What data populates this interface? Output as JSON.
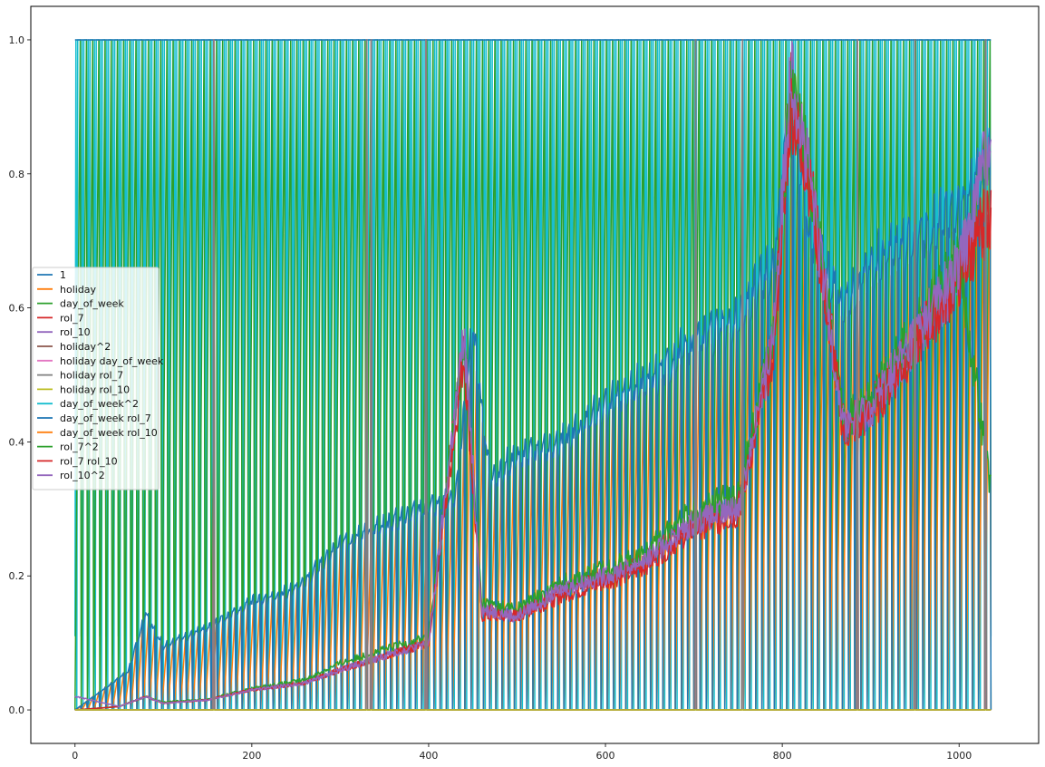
{
  "chart_data": {
    "type": "line",
    "title": "",
    "xlabel": "",
    "ylabel": "",
    "xlim": [
      -50,
      1090
    ],
    "ylim": [
      -0.05,
      1.05
    ],
    "xticks": [
      0,
      200,
      400,
      600,
      800,
      1000
    ],
    "yticks": [
      0.0,
      0.2,
      0.4,
      0.6,
      0.8,
      1.0
    ],
    "xtick_labels": [
      "0",
      "200",
      "400",
      "600",
      "800",
      "1000"
    ],
    "ytick_labels": [
      "0.0",
      "0.2",
      "0.4",
      "0.6",
      "0.8",
      "1.0"
    ],
    "grid": false,
    "legend_position": "center-left",
    "x_range": [
      0,
      1036
    ],
    "weekly_period": 7,
    "series": [
      {
        "name": "1",
        "color": "#1f77b4",
        "pattern": "constant",
        "value": 1.0
      },
      {
        "name": "holiday",
        "color": "#ff7f0e",
        "pattern": "spikes",
        "spikes_at": [
          157,
          330,
          335,
          397,
          702,
          755,
          885,
          950,
          1030
        ]
      },
      {
        "name": "day_of_week",
        "color": "#2ca02c",
        "pattern": "weekly",
        "values": [
          0,
          0.17,
          0.33,
          0.5,
          0.67,
          0.83,
          1.0
        ]
      },
      {
        "name": "rol_7",
        "color": "#d62728",
        "pattern": "level",
        "x": [
          0,
          50,
          80,
          100,
          150,
          200,
          260,
          300,
          350,
          400,
          440,
          460,
          500,
          550,
          600,
          640,
          700,
          750,
          790,
          810,
          830,
          870,
          900,
          950,
          1000,
          1036
        ],
        "y": [
          0.0,
          0.005,
          0.02,
          0.01,
          0.015,
          0.03,
          0.04,
          0.06,
          0.08,
          0.1,
          0.55,
          0.15,
          0.14,
          0.18,
          0.2,
          0.22,
          0.28,
          0.3,
          0.55,
          0.92,
          0.8,
          0.42,
          0.45,
          0.55,
          0.65,
          0.75
        ]
      },
      {
        "name": "rol_10",
        "color": "#9467bd",
        "pattern": "level",
        "x": [
          0,
          50,
          80,
          100,
          150,
          200,
          260,
          300,
          350,
          400,
          440,
          460,
          500,
          550,
          600,
          640,
          700,
          750,
          790,
          810,
          830,
          870,
          900,
          950,
          1000,
          1036
        ],
        "y": [
          0.0,
          0.005,
          0.02,
          0.01,
          0.015,
          0.03,
          0.04,
          0.06,
          0.08,
          0.1,
          0.55,
          0.15,
          0.14,
          0.18,
          0.2,
          0.22,
          0.28,
          0.3,
          0.55,
          0.95,
          0.8,
          0.42,
          0.45,
          0.55,
          0.65,
          0.86
        ]
      },
      {
        "name": "holiday^2",
        "color": "#8c564b",
        "pattern": "spikes",
        "spikes_at": [
          157,
          330,
          335,
          397,
          702,
          755,
          885,
          950,
          1030
        ]
      },
      {
        "name": "holiday day_of_week",
        "color": "#e377c2",
        "pattern": "spikes",
        "spikes_at": [
          157,
          330,
          335,
          397,
          702,
          755,
          885,
          950,
          1030
        ]
      },
      {
        "name": "holiday rol_7",
        "color": "#7f7f7f",
        "pattern": "spikes",
        "spikes_at": [
          157,
          330,
          335,
          397,
          702,
          755,
          885,
          950,
          1030
        ]
      },
      {
        "name": "holiday rol_10",
        "color": "#bcbd22",
        "pattern": "flat",
        "value": 0.0
      },
      {
        "name": "day_of_week^2",
        "color": "#17becf",
        "pattern": "weekly",
        "values": [
          0.11,
          1.0,
          0.0,
          1.0,
          1.0,
          1.0,
          1.0
        ]
      },
      {
        "name": "day_of_week rol_7",
        "color": "#1f77b4",
        "pattern": "envelope",
        "x": [
          0,
          30,
          60,
          80,
          100,
          150,
          200,
          250,
          300,
          350,
          400,
          430,
          450,
          470,
          500,
          550,
          600,
          650,
          700,
          750,
          790,
          810,
          830,
          870,
          900,
          950,
          1000,
          1036
        ],
        "y": [
          0.0,
          0.03,
          0.06,
          0.15,
          0.1,
          0.13,
          0.17,
          0.19,
          0.26,
          0.29,
          0.32,
          0.33,
          0.6,
          0.36,
          0.4,
          0.42,
          0.48,
          0.52,
          0.58,
          0.62,
          0.7,
          1.0,
          0.75,
          0.64,
          0.7,
          0.74,
          0.79,
          0.87
        ]
      },
      {
        "name": "day_of_week rol_10",
        "color": "#ff7f0e",
        "pattern": "weeklyscaled",
        "x": [
          0,
          30,
          60,
          80,
          100,
          150,
          200,
          250,
          300,
          350,
          400,
          430,
          450,
          470,
          500,
          550,
          600,
          650,
          700,
          750,
          790,
          810,
          830,
          870,
          900,
          950,
          1000,
          1036
        ],
        "y": [
          0.0,
          0.03,
          0.06,
          0.14,
          0.1,
          0.12,
          0.16,
          0.18,
          0.25,
          0.27,
          0.3,
          0.31,
          0.55,
          0.33,
          0.37,
          0.39,
          0.44,
          0.48,
          0.53,
          0.57,
          0.66,
          0.83,
          0.68,
          0.58,
          0.63,
          0.67,
          0.72,
          0.8
        ]
      },
      {
        "name": "rol_7^2",
        "color": "#2ca02c",
        "pattern": "level",
        "x": [
          0,
          50,
          80,
          100,
          150,
          200,
          260,
          300,
          350,
          400,
          440,
          460,
          500,
          550,
          600,
          640,
          700,
          750,
          790,
          810,
          830,
          870,
          900,
          950,
          1000,
          1036
        ],
        "y": [
          0.0,
          0.005,
          0.02,
          0.012,
          0.016,
          0.032,
          0.045,
          0.07,
          0.09,
          0.11,
          0.55,
          0.16,
          0.15,
          0.19,
          0.21,
          0.23,
          0.3,
          0.32,
          0.56,
          0.93,
          0.81,
          0.43,
          0.46,
          0.57,
          0.67,
          0.33
        ]
      },
      {
        "name": "rol_7 rol_10",
        "color": "#d62728",
        "pattern": "level",
        "x": [
          0,
          50,
          80,
          100,
          150,
          200,
          260,
          300,
          350,
          400,
          440,
          460,
          500,
          550,
          600,
          640,
          700,
          750,
          790,
          810,
          830,
          870,
          900,
          950,
          1000,
          1036
        ],
        "y": [
          0.0,
          0.005,
          0.02,
          0.01,
          0.015,
          0.03,
          0.04,
          0.06,
          0.08,
          0.1,
          0.53,
          0.14,
          0.14,
          0.17,
          0.19,
          0.21,
          0.27,
          0.29,
          0.54,
          0.9,
          0.79,
          0.41,
          0.44,
          0.54,
          0.64,
          0.74
        ]
      },
      {
        "name": "rol_10^2",
        "color": "#9467bd",
        "pattern": "level",
        "x": [
          0,
          50,
          80,
          100,
          150,
          200,
          260,
          300,
          350,
          400,
          440,
          460,
          500,
          550,
          600,
          640,
          700,
          750,
          790,
          810,
          830,
          870,
          900,
          950,
          1000,
          1036
        ],
        "y": [
          0.02,
          0.005,
          0.02,
          0.01,
          0.015,
          0.03,
          0.04,
          0.06,
          0.08,
          0.1,
          0.56,
          0.15,
          0.14,
          0.18,
          0.2,
          0.22,
          0.28,
          0.3,
          0.56,
          0.96,
          0.8,
          0.42,
          0.45,
          0.56,
          0.66,
          0.86
        ]
      }
    ]
  }
}
